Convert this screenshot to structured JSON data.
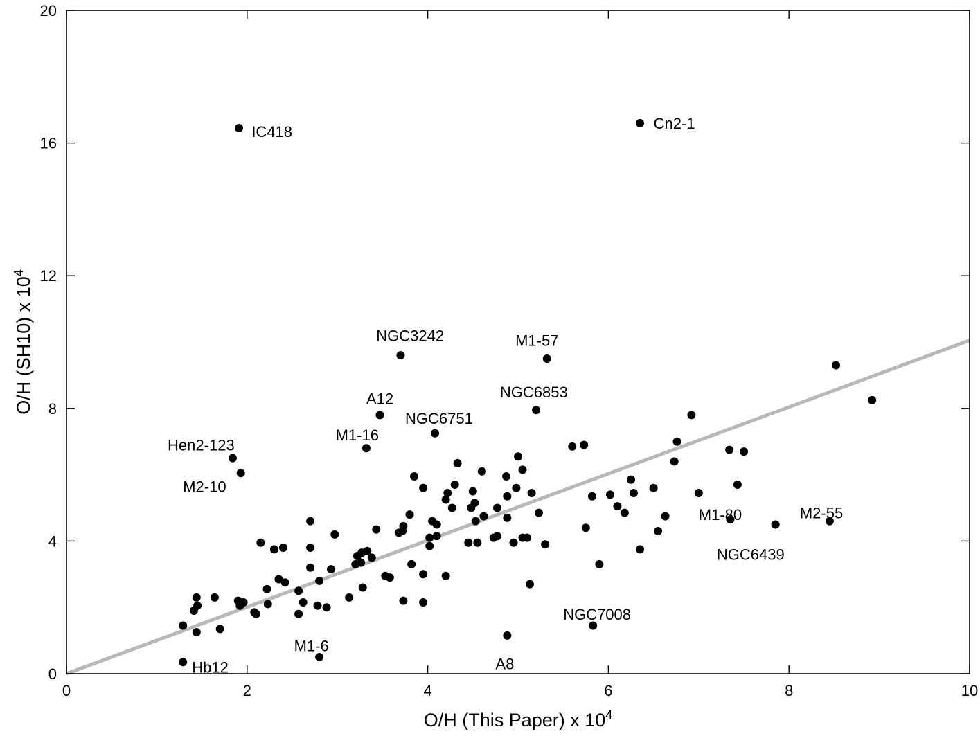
{
  "chart_data": {
    "type": "scatter",
    "title": "",
    "xlabel": "O/H (This Paper) x 10",
    "xlabel_sup": "4",
    "ylabel": "O/H (SH10) x 10",
    "ylabel_sup": "4",
    "xlim": [
      0,
      10
    ],
    "ylim": [
      0,
      20
    ],
    "xticks": [
      0,
      2,
      4,
      6,
      8,
      10
    ],
    "yticks": [
      0,
      4,
      8,
      12,
      16,
      20
    ],
    "grid": false,
    "reference_line": {
      "x": [
        0,
        10
      ],
      "y": [
        0,
        10.05
      ],
      "color": "#b8b8b8"
    },
    "marker_color": "#000000",
    "points": [
      [
        1.91,
        16.45
      ],
      [
        6.35,
        16.6
      ],
      [
        3.7,
        9.6
      ],
      [
        5.32,
        9.5
      ],
      [
        5.2,
        7.95
      ],
      [
        3.47,
        7.8
      ],
      [
        4.08,
        7.25
      ],
      [
        3.32,
        6.8
      ],
      [
        1.84,
        6.5
      ],
      [
        1.93,
        6.05
      ],
      [
        1.29,
        0.35
      ],
      [
        2.8,
        0.5
      ],
      [
        4.88,
        1.15
      ],
      [
        5.83,
        1.45
      ],
      [
        7.35,
        4.65
      ],
      [
        7.85,
        4.5
      ],
      [
        8.45,
        4.6
      ],
      [
        8.52,
        9.3
      ],
      [
        8.92,
        8.25
      ],
      [
        6.92,
        7.8
      ],
      [
        6.76,
        7.0
      ],
      [
        7.34,
        6.75
      ],
      [
        7.5,
        6.7
      ],
      [
        6.73,
        6.4
      ],
      [
        7.43,
        5.7
      ],
      [
        7.0,
        5.45
      ],
      [
        6.63,
        4.75
      ],
      [
        6.55,
        4.3
      ],
      [
        6.35,
        3.75
      ],
      [
        6.5,
        5.6
      ],
      [
        6.25,
        5.85
      ],
      [
        6.28,
        5.45
      ],
      [
        6.02,
        5.4
      ],
      [
        6.1,
        5.05
      ],
      [
        6.18,
        4.85
      ],
      [
        5.6,
        6.85
      ],
      [
        5.73,
        6.9
      ],
      [
        5.82,
        5.35
      ],
      [
        5.75,
        4.4
      ],
      [
        5.9,
        3.3
      ],
      [
        5.0,
        6.55
      ],
      [
        5.05,
        6.15
      ],
      [
        5.15,
        5.45
      ],
      [
        5.23,
        4.85
      ],
      [
        4.98,
        5.6
      ],
      [
        4.87,
        5.95
      ],
      [
        4.88,
        5.35
      ],
      [
        4.77,
        5.0
      ],
      [
        4.88,
        4.7
      ],
      [
        4.95,
        3.95
      ],
      [
        5.05,
        4.1
      ],
      [
        5.1,
        4.1
      ],
      [
        5.3,
        3.9
      ],
      [
        5.13,
        2.7
      ],
      [
        4.77,
        4.15
      ],
      [
        4.73,
        4.1
      ],
      [
        4.6,
        6.1
      ],
      [
        4.5,
        5.5
      ],
      [
        4.52,
        5.15
      ],
      [
        4.48,
        5.0
      ],
      [
        4.53,
        4.6
      ],
      [
        4.62,
        4.75
      ],
      [
        4.45,
        3.95
      ],
      [
        4.55,
        3.95
      ],
      [
        4.33,
        6.35
      ],
      [
        4.3,
        5.7
      ],
      [
        4.22,
        5.45
      ],
      [
        4.2,
        5.25
      ],
      [
        4.27,
        5.0
      ],
      [
        4.1,
        4.5
      ],
      [
        4.05,
        4.6
      ],
      [
        4.02,
        4.1
      ],
      [
        4.1,
        4.15
      ],
      [
        4.02,
        3.85
      ],
      [
        4.2,
        2.95
      ],
      [
        3.95,
        5.6
      ],
      [
        3.85,
        5.95
      ],
      [
        3.8,
        4.8
      ],
      [
        3.73,
        4.45
      ],
      [
        3.72,
        4.3
      ],
      [
        3.68,
        4.25
      ],
      [
        3.43,
        4.35
      ],
      [
        3.33,
        3.7
      ],
      [
        3.27,
        3.65
      ],
      [
        3.38,
        3.5
      ],
      [
        3.22,
        3.55
      ],
      [
        3.2,
        3.3
      ],
      [
        3.26,
        3.35
      ],
      [
        3.82,
        3.3
      ],
      [
        3.95,
        3.0
      ],
      [
        3.53,
        2.95
      ],
      [
        3.58,
        2.9
      ],
      [
        3.28,
        2.6
      ],
      [
        3.13,
        2.3
      ],
      [
        3.73,
        2.2
      ],
      [
        3.95,
        2.15
      ],
      [
        2.97,
        4.2
      ],
      [
        2.93,
        3.15
      ],
      [
        2.8,
        2.8
      ],
      [
        2.7,
        4.6
      ],
      [
        2.7,
        3.8
      ],
      [
        2.7,
        3.2
      ],
      [
        2.78,
        2.05
      ],
      [
        2.88,
        2.0
      ],
      [
        2.62,
        2.15
      ],
      [
        2.57,
        2.5
      ],
      [
        2.57,
        1.8
      ],
      [
        2.35,
        2.85
      ],
      [
        2.42,
        2.75
      ],
      [
        2.4,
        3.8
      ],
      [
        2.3,
        3.75
      ],
      [
        2.15,
        3.95
      ],
      [
        2.22,
        2.55
      ],
      [
        2.23,
        2.1
      ],
      [
        2.08,
        1.85
      ],
      [
        2.1,
        1.8
      ],
      [
        1.9,
        2.2
      ],
      [
        1.92,
        2.05
      ],
      [
        1.96,
        2.15
      ],
      [
        1.64,
        2.3
      ],
      [
        1.44,
        2.3
      ],
      [
        1.41,
        1.9
      ],
      [
        1.45,
        2.05
      ],
      [
        1.29,
        1.45
      ],
      [
        1.44,
        1.25
      ],
      [
        1.7,
        1.35
      ]
    ],
    "annotations": [
      {
        "text": "IC418",
        "x": 2.05,
        "y": 16.35
      },
      {
        "text": "Cn2-1",
        "x": 6.5,
        "y": 16.6
      },
      {
        "text": "NGC3242",
        "x": 3.43,
        "y": 10.2
      },
      {
        "text": "M1-57",
        "x": 4.97,
        "y": 10.05
      },
      {
        "text": "NGC6853",
        "x": 4.8,
        "y": 8.5
      },
      {
        "text": "A12",
        "x": 3.32,
        "y": 8.3
      },
      {
        "text": "NGC6751",
        "x": 3.75,
        "y": 7.7
      },
      {
        "text": "M1-16",
        "x": 2.98,
        "y": 7.2
      },
      {
        "text": "Hen2-123",
        "x": 1.12,
        "y": 6.9
      },
      {
        "text": "M2-10",
        "x": 1.29,
        "y": 5.65
      },
      {
        "text": "Hb12",
        "x": 1.39,
        "y": 0.2
      },
      {
        "text": "M1-6",
        "x": 2.52,
        "y": 0.85
      },
      {
        "text": "A8",
        "x": 4.75,
        "y": 0.3
      },
      {
        "text": "NGC7008",
        "x": 5.5,
        "y": 1.8
      },
      {
        "text": "M1-80",
        "x": 7.0,
        "y": 4.8
      },
      {
        "text": "M2-55",
        "x": 8.12,
        "y": 4.85
      },
      {
        "text": "NGC6439",
        "x": 7.2,
        "y": 3.6
      }
    ]
  }
}
